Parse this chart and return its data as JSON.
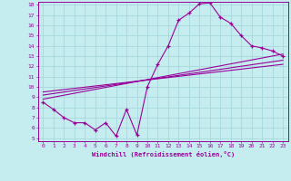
{
  "xlabel": "Windchill (Refroidissement éolien,°C)",
  "bg_color": "#c5edf0",
  "line_color": "#990099",
  "grid_color": "#a8d8dc",
  "xlim": [
    -0.5,
    23.5
  ],
  "ylim": [
    4.7,
    18.3
  ],
  "yticks": [
    5,
    6,
    7,
    8,
    9,
    10,
    11,
    12,
    13,
    14,
    15,
    16,
    17,
    18
  ],
  "xticks": [
    0,
    1,
    2,
    3,
    4,
    5,
    6,
    7,
    8,
    9,
    10,
    11,
    12,
    13,
    14,
    15,
    16,
    17,
    18,
    19,
    20,
    21,
    22,
    23
  ],
  "data_x": [
    0,
    1,
    2,
    3,
    4,
    5,
    6,
    7,
    8,
    9,
    10,
    11,
    12,
    13,
    14,
    15,
    16,
    17,
    18,
    19,
    20,
    21,
    22,
    23
  ],
  "data_y": [
    8.5,
    7.8,
    7.0,
    6.5,
    6.5,
    5.8,
    6.5,
    5.2,
    7.8,
    5.3,
    10.0,
    12.2,
    14.0,
    16.5,
    17.2,
    18.1,
    18.2,
    16.8,
    16.2,
    15.0,
    14.0,
    13.8,
    13.5,
    13.0
  ],
  "trend1_x": [
    0,
    23
  ],
  "trend1_y": [
    8.8,
    13.2
  ],
  "trend2_x": [
    0,
    23
  ],
  "trend2_y": [
    9.2,
    12.6
  ],
  "trend3_x": [
    0,
    23
  ],
  "trend3_y": [
    9.5,
    12.2
  ]
}
